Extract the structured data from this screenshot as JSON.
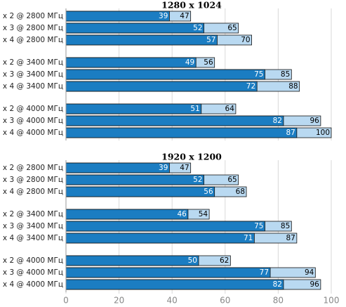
{
  "chart_data": [
    {
      "type": "bar",
      "title": "1280 x 1024",
      "categories": [
        "x 2 @ 2800 МГц",
        "x 3 @ 2800 МГц",
        "x 4 @ 2800 МГц",
        "x 2 @ 3400 МГц",
        "x 3 @ 3400 МГц",
        "x 4 @ 3400 МГц",
        "x 2 @ 4000 МГц",
        "x 3 @ 4000 МГц",
        "x 4 @ 4000 МГц"
      ],
      "series": [
        {
          "color": "#b9d9f1",
          "values": [
            47,
            65,
            70,
            56,
            85,
            88,
            64,
            96,
            100
          ]
        },
        {
          "color": "#1b7dc2",
          "values": [
            39,
            52,
            57,
            49,
            75,
            72,
            51,
            82,
            87
          ]
        }
      ],
      "xlim": [
        0,
        100
      ],
      "xticks": [
        0,
        20,
        40,
        60,
        80,
        100
      ],
      "grid": true
    },
    {
      "type": "bar",
      "title": "1920 x 1200",
      "categories": [
        "x 2 @ 2800 МГц",
        "x 3 @ 2800 МГц",
        "x 4 @ 2800 МГц",
        "x 2 @ 3400 МГц",
        "x 3 @ 3400 МГц",
        "x 4 @ 3400 МГц",
        "x 2 @ 4000 МГц",
        "x 3 @ 4000 МГц",
        "x 4 @ 4000 МГц"
      ],
      "series": [
        {
          "color": "#b9d9f1",
          "values": [
            47,
            65,
            68,
            54,
            85,
            87,
            62,
            94,
            96
          ]
        },
        {
          "color": "#1b7dc2",
          "values": [
            39,
            52,
            56,
            46,
            75,
            71,
            50,
            77,
            82
          ]
        }
      ],
      "xlim": [
        0,
        100
      ],
      "xticks": [
        0,
        20,
        40,
        60,
        80,
        100
      ],
      "grid": true
    }
  ]
}
